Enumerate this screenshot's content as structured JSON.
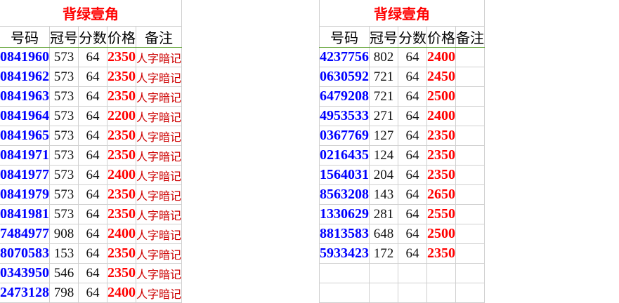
{
  "left_table": {
    "title": "背绿壹角",
    "headers": [
      "号码",
      "冠号",
      "分数",
      "价格",
      "备注"
    ],
    "rows": [
      [
        "0841960",
        "573",
        "64",
        "2350",
        "人字暗记"
      ],
      [
        "0841962",
        "573",
        "64",
        "2350",
        "人字暗记"
      ],
      [
        "0841963",
        "573",
        "64",
        "2350",
        "人字暗记"
      ],
      [
        "0841964",
        "573",
        "64",
        "2200",
        "人字暗记"
      ],
      [
        "0841965",
        "573",
        "64",
        "2350",
        "人字暗记"
      ],
      [
        "0841971",
        "573",
        "64",
        "2350",
        "人字暗记"
      ],
      [
        "0841977",
        "573",
        "64",
        "2400",
        "人字暗记"
      ],
      [
        "0841979",
        "573",
        "64",
        "2350",
        "人字暗记"
      ],
      [
        "0841981",
        "573",
        "64",
        "2350",
        "人字暗记"
      ],
      [
        "7484977",
        "908",
        "64",
        "2400",
        "人字暗记"
      ],
      [
        "8070583",
        "153",
        "64",
        "2350",
        "人字暗记"
      ],
      [
        "0343950",
        "546",
        "64",
        "2350",
        "人字暗记"
      ],
      [
        "2473128",
        "798",
        "64",
        "2400",
        "人字暗记"
      ]
    ]
  },
  "right_table": {
    "title": "背绿壹角",
    "headers": [
      "号码",
      "冠号",
      "分数",
      "价格",
      "备注"
    ],
    "rows": [
      [
        "4237756",
        "802",
        "64",
        "2400",
        ""
      ],
      [
        "0630592",
        "721",
        "64",
        "2450",
        ""
      ],
      [
        "6479208",
        "721",
        "64",
        "2500",
        ""
      ],
      [
        "4953533",
        "271",
        "64",
        "2400",
        ""
      ],
      [
        "0367769",
        "127",
        "64",
        "2350",
        ""
      ],
      [
        "0216435",
        "124",
        "64",
        "2350",
        ""
      ],
      [
        "1564031",
        "204",
        "64",
        "2350",
        ""
      ],
      [
        "8563208",
        "143",
        "64",
        "2650",
        ""
      ],
      [
        "1330629",
        "281",
        "64",
        "2550",
        ""
      ],
      [
        "8813583",
        "648",
        "64",
        "2500",
        ""
      ],
      [
        "5933423",
        "172",
        "64",
        "2350",
        ""
      ],
      [
        "",
        "",
        "",
        "",
        ""
      ],
      [
        "",
        "",
        "",
        "",
        ""
      ]
    ]
  },
  "colors": {
    "title": "#ff0000",
    "serial": "#0000ff",
    "price": "#ff0000",
    "note": "#cc0000",
    "header_border": "#5aa02c"
  }
}
